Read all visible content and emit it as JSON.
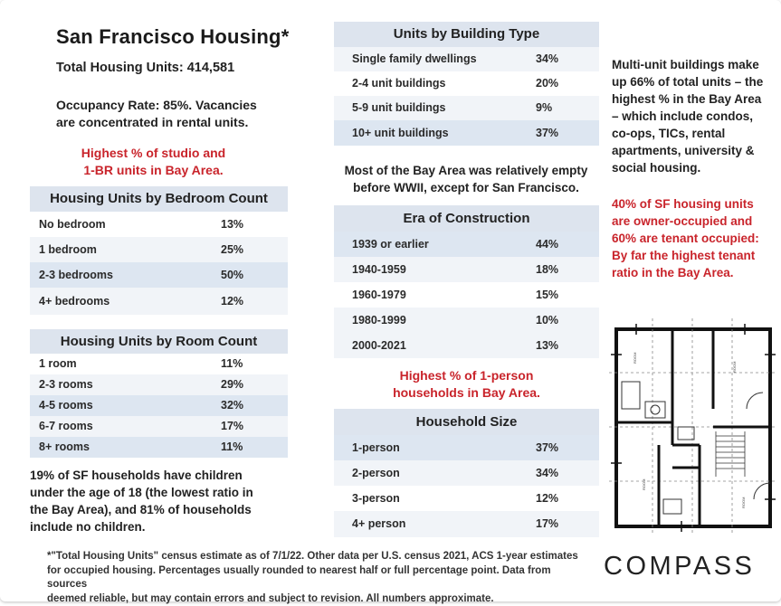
{
  "title": "San Francisco Housing*",
  "total_units": "Total Housing Units: 414,581",
  "occupancy_line1": "Occupancy Rate:  85%.  Vacancies",
  "occupancy_line2": "are concentrated in rental units.",
  "studio_note_line1": "Highest % of studio and",
  "studio_note_line2": "1-BR units in Bay Area.",
  "bedroom_table": {
    "header": "Housing Units by Bedroom Count",
    "rows": [
      {
        "label": "No bedroom",
        "value": "13%"
      },
      {
        "label": "1 bedroom",
        "value": "25%"
      },
      {
        "label": "2-3 bedrooms",
        "value": "50%"
      },
      {
        "label": "4+ bedrooms",
        "value": "12%"
      }
    ]
  },
  "room_table": {
    "header": "Housing Units by Room Count",
    "rows": [
      {
        "label": "1 room",
        "value": "11%"
      },
      {
        "label": "2-3 rooms",
        "value": "29%"
      },
      {
        "label": "4-5 rooms",
        "value": "32%"
      },
      {
        "label": "6-7 rooms",
        "value": "17%"
      },
      {
        "label": "8+ rooms",
        "value": "11%"
      }
    ]
  },
  "children_note": [
    "19%  of  SF  households  have  children",
    "under  the  age  of  18  (the  lowest  ratio  in",
    "the  Bay  Area),  and  81%  of  households",
    "include no children."
  ],
  "building_table": {
    "header": "Units by Building Type",
    "rows": [
      {
        "label": "Single family dwellings",
        "value": "34%"
      },
      {
        "label": "2-4 unit buildings",
        "value": "20%"
      },
      {
        "label": "5-9 unit buildings",
        "value": "9%"
      },
      {
        "label": "10+ unit buildings",
        "value": "37%"
      }
    ]
  },
  "wwii_note_line1": "Most of the Bay Area was relatively empty",
  "wwii_note_line2": "before WWII, except for San Francisco.",
  "era_table": {
    "header": "Era of Construction",
    "rows": [
      {
        "label": "1939 or earlier",
        "value": "44%"
      },
      {
        "label": "1940-1959",
        "value": "18%"
      },
      {
        "label": "1960-1979",
        "value": "15%"
      },
      {
        "label": "1980-1999",
        "value": "10%"
      },
      {
        "label": "2000-2021",
        "value": "13%"
      }
    ]
  },
  "oneperson_note_line1": "Highest % of 1-person",
  "oneperson_note_line2": "households in Bay Area.",
  "household_table": {
    "header": "Household Size",
    "rows": [
      {
        "label": "1-person",
        "value": "37%"
      },
      {
        "label": "2-person",
        "value": "34%"
      },
      {
        "label": "3-person",
        "value": "12%"
      },
      {
        "label": "4+ person",
        "value": "17%"
      }
    ]
  },
  "multiunit_note": [
    "Multi-unit  buildings  make",
    "up 66% of total units – the",
    "highest % in the Bay Area",
    "–  which  include  condos,",
    "co-ops,       TICs,       rental",
    "apartments,  university  &",
    "social housing."
  ],
  "owner_note": [
    "40%  of  SF  housing  units",
    "are  owner-occupied  and",
    "60%  are  tenant  occupied:",
    "By  far  the  highest  tenant",
    "ratio in the Bay Area."
  ],
  "footnote": [
    "*\"Total Housing Units\" census estimate as of 7/1/22. Other data per U.S. census 2021, ACS 1-year estimates",
    "for occupied housing. Percentages usually rounded to nearest half or full percentage point. Data from sources",
    "deemed reliable, but may contain errors and subject to revision. All numbers approximate."
  ],
  "logo": "COMPASS"
}
